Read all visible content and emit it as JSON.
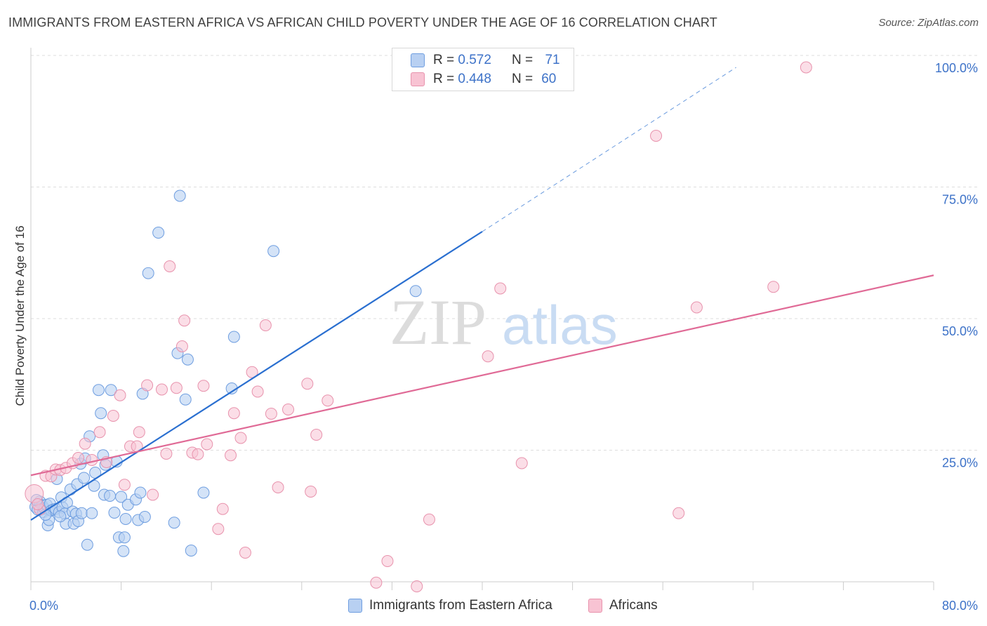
{
  "title": "IMMIGRANTS FROM EASTERN AFRICA VS AFRICAN CHILD POVERTY UNDER THE AGE OF 16 CORRELATION CHART",
  "source": "Source: ZipAtlas.com",
  "watermark": {
    "zip": "ZIP",
    "atlas": "atlas"
  },
  "legend_top": {
    "rows": [
      {
        "r_label": "R =",
        "r_value": "0.572",
        "n_label": "N =",
        "n_value": "71"
      },
      {
        "r_label": "R =",
        "r_value": "0.448",
        "n_label": "N =",
        "n_value": "60"
      }
    ]
  },
  "legend_bottom": [
    "Immigrants from Eastern Africa",
    "Africans"
  ],
  "colors": {
    "blue_fill": "#b8d0f2",
    "blue_stroke": "#6f9ee0",
    "blue_line": "#2a6fd0",
    "pink_fill": "#f8c3d3",
    "pink_stroke": "#e893ad",
    "pink_line": "#e06a96",
    "tick_label": "#3d72c8",
    "grid": "#dddddd"
  },
  "chart_data": {
    "type": "scatter",
    "title": "IMMIGRANTS FROM EASTERN AFRICA VS AFRICAN CHILD POVERTY UNDER THE AGE OF 16 CORRELATION CHART",
    "xlabel": "",
    "ylabel": "Child Poverty Under the Age of 16",
    "xlim": [
      0,
      80
    ],
    "ylim": [
      0,
      100
    ],
    "x_tick_labels": [
      "0.0%",
      "80.0%"
    ],
    "y_ticks": [
      25,
      50,
      75,
      100
    ],
    "y_tick_labels": [
      "25.0%",
      "50.0%",
      "75.0%",
      "100.0%"
    ],
    "series": [
      {
        "name": "Immigrants from Eastern Africa",
        "R": 0.572,
        "N": 71,
        "trend": {
          "x0": 0,
          "y0": 14,
          "x1": 40,
          "y1": 68.8,
          "dash_to_x": 62.5,
          "dash_to_y": 100
        },
        "points": [
          [
            0.4,
            16.5
          ],
          [
            0.6,
            16
          ],
          [
            0.8,
            17.5
          ],
          [
            1.0,
            16.8
          ],
          [
            1.1,
            15.5
          ],
          [
            1.2,
            16.2
          ],
          [
            1.4,
            16.9
          ],
          [
            1.5,
            13
          ],
          [
            1.6,
            14
          ],
          [
            1.7,
            17.1
          ],
          [
            1.8,
            15.8
          ],
          [
            2.0,
            16
          ],
          [
            2.2,
            16.1
          ],
          [
            2.3,
            21.8
          ],
          [
            2.5,
            15.5
          ],
          [
            2.7,
            18.3
          ],
          [
            2.8,
            16.4
          ],
          [
            3.0,
            15.2
          ],
          [
            3.1,
            13.3
          ],
          [
            3.2,
            17.3
          ],
          [
            3.5,
            19.8
          ],
          [
            3.7,
            15.6
          ],
          [
            3.8,
            13.3
          ],
          [
            4.0,
            15.2
          ],
          [
            4.1,
            20.8
          ],
          [
            4.2,
            13.8
          ],
          [
            4.4,
            24.7
          ],
          [
            4.5,
            15.3
          ],
          [
            4.7,
            22
          ],
          [
            4.8,
            25.7
          ],
          [
            5.0,
            9.3
          ],
          [
            5.2,
            29.9
          ],
          [
            5.4,
            15.3
          ],
          [
            5.6,
            20.5
          ],
          [
            5.7,
            23
          ],
          [
            6.0,
            38.7
          ],
          [
            6.2,
            34.3
          ],
          [
            6.4,
            26.3
          ],
          [
            6.5,
            18.8
          ],
          [
            6.6,
            24.5
          ],
          [
            7.0,
            18.6
          ],
          [
            7.1,
            38.7
          ],
          [
            7.4,
            15.4
          ],
          [
            7.6,
            25.1
          ],
          [
            7.8,
            10.7
          ],
          [
            8.0,
            18.4
          ],
          [
            8.2,
            8.1
          ],
          [
            8.3,
            10.7
          ],
          [
            8.4,
            14.2
          ],
          [
            8.6,
            16.9
          ],
          [
            9.3,
            17.9
          ],
          [
            9.5,
            14
          ],
          [
            9.7,
            19.2
          ],
          [
            10.1,
            14.6
          ],
          [
            9.9,
            38
          ],
          [
            10.4,
            60.9
          ],
          [
            11.3,
            68.6
          ],
          [
            12.7,
            13.5
          ],
          [
            13.2,
            75.6
          ],
          [
            13.0,
            45.7
          ],
          [
            13.7,
            36.9
          ],
          [
            13.9,
            44.5
          ],
          [
            14.2,
            8.2
          ],
          [
            15.3,
            19.2
          ],
          [
            17.8,
            39
          ],
          [
            18.0,
            48.8
          ],
          [
            21.5,
            65.1
          ],
          [
            34.1,
            57.5
          ],
          [
            0.5,
            17.8
          ],
          [
            1.3,
            15
          ],
          [
            2.6,
            14.7
          ]
        ]
      },
      {
        "name": "Africans",
        "R": 0.448,
        "N": 60,
        "trend": {
          "x0": 0,
          "y0": 22.5,
          "x1": 80,
          "y1": 60.5
        },
        "points": [
          [
            0.3,
            19
          ],
          [
            0.8,
            16
          ],
          [
            1.3,
            22.4
          ],
          [
            1.8,
            22.3
          ],
          [
            2.2,
            23.6
          ],
          [
            2.6,
            23.5
          ],
          [
            3.1,
            23.9
          ],
          [
            3.7,
            24.8
          ],
          [
            4.2,
            25.8
          ],
          [
            4.8,
            28.5
          ],
          [
            5.4,
            25.4
          ],
          [
            6.1,
            30.7
          ],
          [
            6.7,
            25
          ],
          [
            7.3,
            33.8
          ],
          [
            7.9,
            37.7
          ],
          [
            8.3,
            20.7
          ],
          [
            8.8,
            28
          ],
          [
            9.4,
            28
          ],
          [
            9.6,
            30.7
          ],
          [
            10.3,
            39.6
          ],
          [
            10.8,
            18.8
          ],
          [
            11.6,
            38.8
          ],
          [
            12.0,
            26.6
          ],
          [
            12.3,
            62.2
          ],
          [
            12.9,
            39.1
          ],
          [
            13.4,
            47
          ],
          [
            13.6,
            51.9
          ],
          [
            14.3,
            26.8
          ],
          [
            14.8,
            26.5
          ],
          [
            15.3,
            39.5
          ],
          [
            15.6,
            28.4
          ],
          [
            16.6,
            12.3
          ],
          [
            17.0,
            16.1
          ],
          [
            17.7,
            26.3
          ],
          [
            18.0,
            34.3
          ],
          [
            18.6,
            29.6
          ],
          [
            19.0,
            7.8
          ],
          [
            19.6,
            42.1
          ],
          [
            20.1,
            38.4
          ],
          [
            20.8,
            51
          ],
          [
            21.3,
            34.2
          ],
          [
            21.9,
            20.2
          ],
          [
            22.8,
            35
          ],
          [
            24.5,
            39.9
          ],
          [
            24.8,
            19.4
          ],
          [
            25.3,
            30.2
          ],
          [
            26.3,
            36.7
          ],
          [
            30.6,
            2.1
          ],
          [
            31.6,
            6.2
          ],
          [
            34.2,
            1.4
          ],
          [
            35.3,
            14.1
          ],
          [
            40.5,
            45.1
          ],
          [
            41.6,
            58
          ],
          [
            43.5,
            24.8
          ],
          [
            55.4,
            87
          ],
          [
            57.4,
            15.3
          ],
          [
            59.0,
            54.4
          ],
          [
            65.8,
            58.3
          ],
          [
            68.7,
            100
          ],
          [
            0.6,
            17
          ]
        ]
      }
    ]
  }
}
